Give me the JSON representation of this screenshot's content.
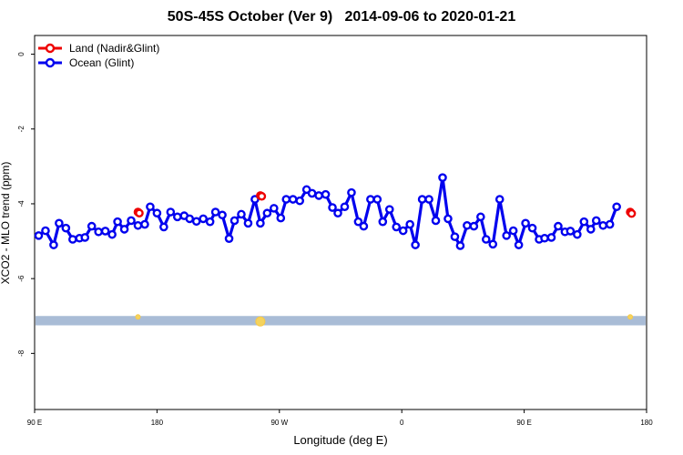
{
  "chart_data": {
    "type": "line",
    "title": "50S-45S October (Ver 9)   2014-09-06 to 2020-01-21",
    "xlabel": "Longitude (deg E)",
    "ylabel": "XCO2 - MLO trend (ppm)",
    "x_ticks": [
      {
        "value": 90,
        "label": "90 E"
      },
      {
        "value": 180,
        "label": "180"
      },
      {
        "value": 270,
        "label": "90 W"
      },
      {
        "value": 360,
        "label": "0"
      },
      {
        "value": 450,
        "label": "90 E"
      },
      {
        "value": 540,
        "label": "180"
      }
    ],
    "y_ticks": [
      0,
      -2,
      -4,
      -6,
      -8
    ],
    "xlim": [
      90,
      540
    ],
    "ylim": [
      -9.5,
      0.5
    ],
    "grid": false,
    "legend_position": "top-left",
    "series": [
      {
        "name": "Land (Nadir&Glint)",
        "color": "#ee0000",
        "points": [
          [
            166,
            -4.22
          ],
          [
            167,
            -4.25
          ],
          [
            256,
            -3.78
          ],
          [
            257,
            -3.8
          ],
          [
            528,
            -4.22
          ],
          [
            529,
            -4.26
          ]
        ]
      },
      {
        "name": "Ocean (Glint)",
        "color": "#0000ee",
        "points": [
          [
            93,
            -4.85
          ],
          [
            98,
            -4.72
          ],
          [
            104,
            -5.1
          ],
          [
            108,
            -4.52
          ],
          [
            113,
            -4.65
          ],
          [
            118,
            -4.95
          ],
          [
            123,
            -4.92
          ],
          [
            127,
            -4.9
          ],
          [
            132,
            -4.6
          ],
          [
            137,
            -4.75
          ],
          [
            142,
            -4.73
          ],
          [
            147,
            -4.82
          ],
          [
            151,
            -4.48
          ],
          [
            156,
            -4.68
          ],
          [
            161,
            -4.45
          ],
          [
            166,
            -4.58
          ],
          [
            171,
            -4.55
          ],
          [
            175,
            -4.08
          ],
          [
            180,
            -4.25
          ],
          [
            185,
            -4.62
          ],
          [
            190,
            -4.22
          ],
          [
            195,
            -4.35
          ],
          [
            200,
            -4.32
          ],
          [
            204,
            -4.4
          ],
          [
            209,
            -4.47
          ],
          [
            214,
            -4.4
          ],
          [
            219,
            -4.48
          ],
          [
            223,
            -4.22
          ],
          [
            228,
            -4.3
          ],
          [
            233,
            -4.93
          ],
          [
            237,
            -4.45
          ],
          [
            242,
            -4.28
          ],
          [
            247,
            -4.52
          ],
          [
            252,
            -3.88
          ],
          [
            256,
            -4.52
          ],
          [
            261,
            -4.25
          ],
          [
            266,
            -4.12
          ],
          [
            271,
            -4.38
          ],
          [
            275,
            -3.88
          ],
          [
            280,
            -3.88
          ],
          [
            285,
            -3.92
          ],
          [
            290,
            -3.62
          ],
          [
            294,
            -3.72
          ],
          [
            299,
            -3.78
          ],
          [
            304,
            -3.75
          ],
          [
            309,
            -4.1
          ],
          [
            313,
            -4.25
          ],
          [
            318,
            -4.08
          ],
          [
            323,
            -3.7
          ],
          [
            328,
            -4.48
          ],
          [
            332,
            -4.6
          ],
          [
            337,
            -3.88
          ],
          [
            342,
            -3.88
          ],
          [
            346,
            -4.48
          ],
          [
            351,
            -4.15
          ],
          [
            356,
            -4.62
          ],
          [
            361,
            -4.72
          ],
          [
            366,
            -4.55
          ],
          [
            370,
            -5.1
          ],
          [
            375,
            -3.88
          ],
          [
            380,
            -3.88
          ],
          [
            385,
            -4.45
          ],
          [
            390,
            -3.3
          ],
          [
            394,
            -4.4
          ],
          [
            399,
            -4.88
          ],
          [
            403,
            -5.12
          ],
          [
            408,
            -4.58
          ],
          [
            413,
            -4.6
          ],
          [
            418,
            -4.35
          ],
          [
            422,
            -4.95
          ],
          [
            427,
            -5.08
          ],
          [
            432,
            -3.88
          ],
          [
            437,
            -4.85
          ],
          [
            442,
            -4.72
          ],
          [
            446,
            -5.1
          ],
          [
            451,
            -4.52
          ],
          [
            456,
            -4.65
          ],
          [
            461,
            -4.95
          ],
          [
            465,
            -4.92
          ],
          [
            470,
            -4.9
          ],
          [
            475,
            -4.6
          ],
          [
            480,
            -4.75
          ],
          [
            484,
            -4.73
          ],
          [
            489,
            -4.82
          ],
          [
            494,
            -4.48
          ],
          [
            499,
            -4.68
          ],
          [
            503,
            -4.45
          ],
          [
            508,
            -4.58
          ],
          [
            513,
            -4.55
          ],
          [
            518,
            -4.08
          ]
        ]
      }
    ],
    "band": {
      "y_from": -7.0,
      "y_to": -7.25,
      "color": "#a9bcd6"
    },
    "band_markers": [
      {
        "x": 166,
        "size": "small"
      },
      {
        "x": 256,
        "size": "large"
      },
      {
        "x": 528,
        "size": "small"
      }
    ]
  }
}
